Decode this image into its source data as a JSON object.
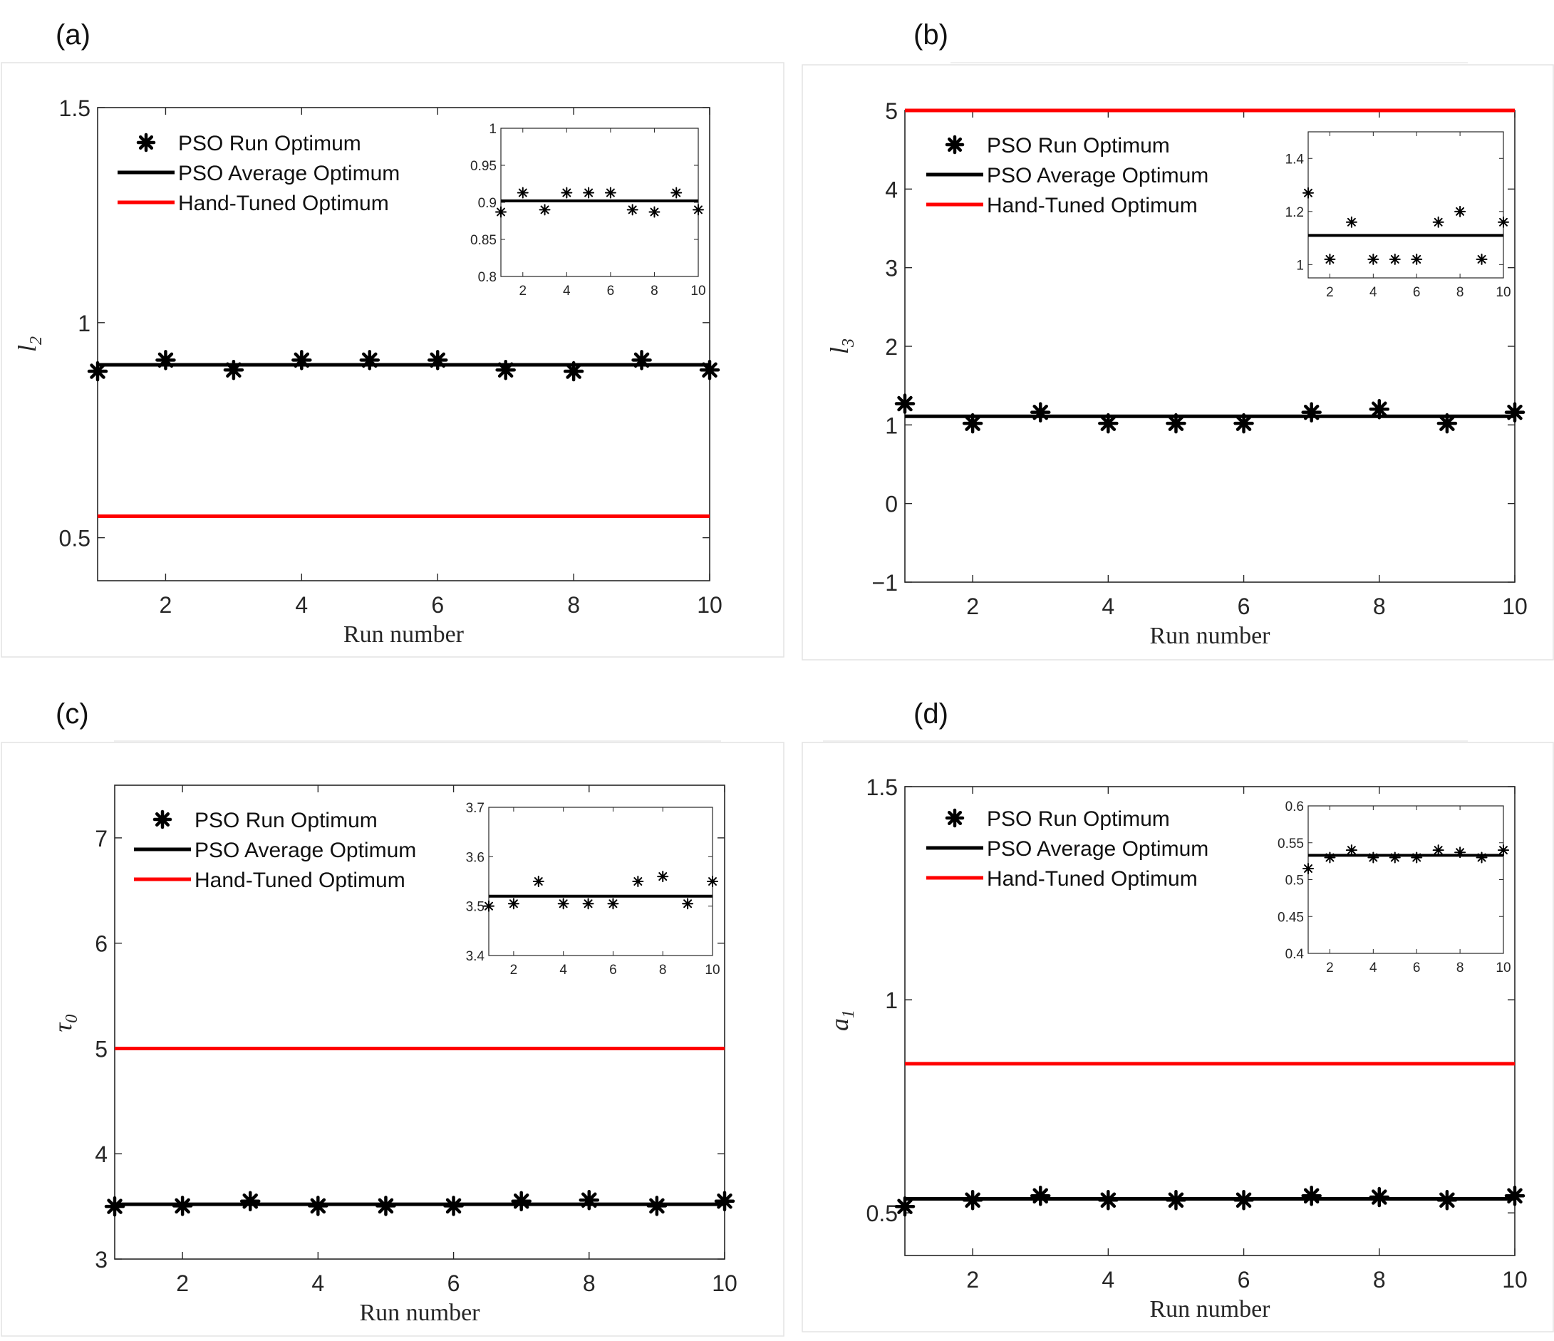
{
  "chart_data": [
    {
      "panel": "(a)",
      "type": "scatter",
      "x": [
        1,
        2,
        3,
        4,
        5,
        6,
        7,
        8,
        9,
        10
      ],
      "ylabel": "l",
      "ylabel_sub": "2",
      "xlabel": "Run number",
      "ylim": [
        0.4,
        1.5
      ],
      "yticks": [
        0.5,
        1,
        1.5
      ],
      "xticks": [
        2,
        4,
        6,
        8,
        10
      ],
      "series": [
        {
          "name": "PSO Run Optimum",
          "type": "scatter",
          "color": "#000000",
          "values": [
            0.887,
            0.913,
            0.89,
            0.913,
            0.913,
            0.913,
            0.89,
            0.887,
            0.913,
            0.89
          ]
        },
        {
          "name": "PSO Average Optimum",
          "type": "line",
          "color": "#000000",
          "value": 0.902
        },
        {
          "name": "Hand-Tuned Optimum",
          "type": "line",
          "color": "#ff0000",
          "value": 0.55
        }
      ],
      "inset": {
        "ylim": [
          0.8,
          1.0
        ],
        "yticks": [
          0.8,
          0.85,
          0.9,
          0.95,
          1
        ],
        "ytick_labels": [
          "0.8",
          "0.85",
          "0.9",
          "0.95",
          "1"
        ],
        "xticks": [
          2,
          4,
          6,
          8,
          10
        ]
      }
    },
    {
      "panel": "(b)",
      "type": "scatter",
      "x": [
        1,
        2,
        3,
        4,
        5,
        6,
        7,
        8,
        9,
        10
      ],
      "ylabel": "l",
      "ylabel_sub": "3",
      "xlabel": "Run number",
      "ylim": [
        -1,
        5
      ],
      "yticks": [
        -1,
        0,
        1,
        2,
        3,
        4,
        5
      ],
      "xticks": [
        2,
        4,
        6,
        8,
        10
      ],
      "series": [
        {
          "name": "PSO Run Optimum",
          "type": "scatter",
          "color": "#000000",
          "values": [
            1.27,
            1.02,
            1.16,
            1.02,
            1.02,
            1.02,
            1.16,
            1.2,
            1.02,
            1.16
          ]
        },
        {
          "name": "PSO Average Optimum",
          "type": "line",
          "color": "#000000",
          "value": 1.11
        },
        {
          "name": "Hand-Tuned Optimum",
          "type": "line",
          "color": "#ff0000",
          "value": 5
        }
      ],
      "inset": {
        "ylim": [
          0.95,
          1.5
        ],
        "yticks": [
          1,
          1.2,
          1.4
        ],
        "ytick_labels": [
          "1",
          "1.2",
          "1.4"
        ],
        "xticks": [
          2,
          4,
          6,
          8,
          10
        ]
      }
    },
    {
      "panel": "(c)",
      "type": "scatter",
      "x": [
        1,
        2,
        3,
        4,
        5,
        6,
        7,
        8,
        9,
        10
      ],
      "ylabel": "τ",
      "ylabel_sub": "0",
      "xlabel": "Run number",
      "ylim": [
        3,
        7.5
      ],
      "yticks": [
        3,
        4,
        5,
        6,
        7
      ],
      "xticks": [
        2,
        4,
        6,
        8,
        10
      ],
      "series": [
        {
          "name": "PSO Run Optimum",
          "type": "scatter",
          "color": "#000000",
          "values": [
            3.5,
            3.505,
            3.55,
            3.505,
            3.505,
            3.505,
            3.55,
            3.56,
            3.505,
            3.55
          ]
        },
        {
          "name": "PSO Average Optimum",
          "type": "line",
          "color": "#000000",
          "value": 3.52
        },
        {
          "name": "Hand-Tuned Optimum",
          "type": "line",
          "color": "#ff0000",
          "value": 5
        }
      ],
      "inset": {
        "ylim": [
          3.4,
          3.7
        ],
        "yticks": [
          3.4,
          3.5,
          3.6,
          3.7
        ],
        "ytick_labels": [
          "3.4",
          "3.5",
          "3.6",
          "3.7"
        ],
        "xticks": [
          2,
          4,
          6,
          8,
          10
        ]
      }
    },
    {
      "panel": "(d)",
      "type": "scatter",
      "x": [
        1,
        2,
        3,
        4,
        5,
        6,
        7,
        8,
        9,
        10
      ],
      "ylabel": "a",
      "ylabel_sub": "1",
      "xlabel": "Run number",
      "ylim": [
        0.4,
        1.5
      ],
      "yticks": [
        0.5,
        1,
        1.5
      ],
      "xticks": [
        2,
        4,
        6,
        8,
        10
      ],
      "series": [
        {
          "name": "PSO Run Optimum",
          "type": "scatter",
          "color": "#000000",
          "values": [
            0.515,
            0.53,
            0.54,
            0.53,
            0.53,
            0.53,
            0.54,
            0.537,
            0.53,
            0.54
          ]
        },
        {
          "name": "PSO Average Optimum",
          "type": "line",
          "color": "#000000",
          "value": 0.533
        },
        {
          "name": "Hand-Tuned Optimum",
          "type": "line",
          "color": "#ff0000",
          "value": 0.85
        }
      ],
      "inset": {
        "ylim": [
          0.4,
          0.6
        ],
        "yticks": [
          0.4,
          0.45,
          0.5,
          0.55,
          0.6
        ],
        "ytick_labels": [
          "0.4",
          "0.45",
          "0.5",
          "0.55",
          "0.6"
        ],
        "xticks": [
          2,
          4,
          6,
          8,
          10
        ]
      }
    }
  ]
}
